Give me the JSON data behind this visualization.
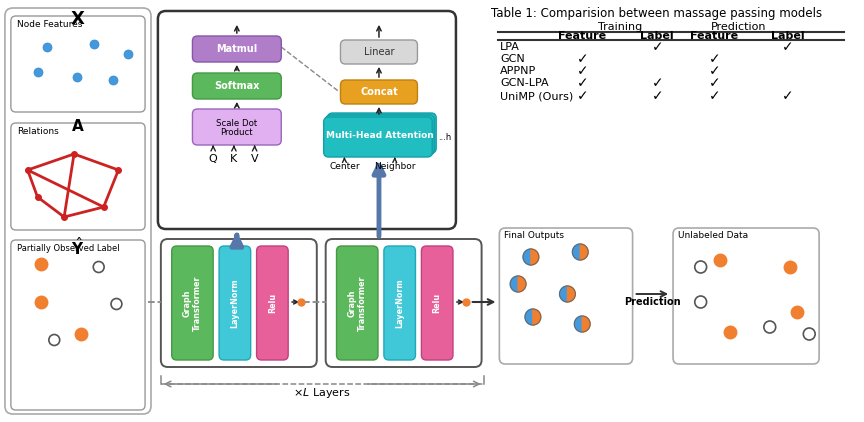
{
  "title": "Table 1: Comparision between massage passing models",
  "table": {
    "rows": [
      "LPA",
      "GCN",
      "APPNP",
      "GCN-LPA",
      "UniMP (Ours)"
    ],
    "cols": [
      "Feature",
      "Label",
      "Feature",
      "Label"
    ],
    "group1": "Training",
    "group2": "Prediction",
    "checks": [
      [
        false,
        true,
        false,
        true
      ],
      [
        true,
        false,
        true,
        false
      ],
      [
        true,
        false,
        true,
        false
      ],
      [
        true,
        true,
        true,
        false
      ],
      [
        true,
        true,
        true,
        true
      ]
    ]
  },
  "colors": {
    "matmul_box": "#b07ec9",
    "softmax_box": "#5cb85c",
    "scaledot_box": "#e0b0f0",
    "linear_box": "#d8d8d8",
    "concat_box": "#e8a020",
    "multihead_box": "#20bec0",
    "graph_transformer_box": "#5cb85c",
    "layernorm_box": "#40c8d8",
    "relu_box": "#e8609a",
    "blue_arrow": "#5577aa",
    "node_features_dots": "#4499dd",
    "relations_color": "#cc2222",
    "label_orange": "#f08030",
    "background": "#ffffff"
  }
}
